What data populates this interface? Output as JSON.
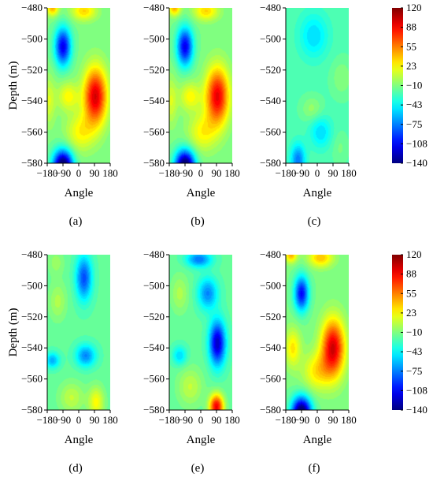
{
  "chart_data": {
    "type": "heatmap",
    "colorbar": {
      "ticks": [
        "120",
        "88",
        "55",
        "23",
        "−10",
        "−43",
        "−75",
        "−108",
        "−140"
      ],
      "range": [
        -140,
        120
      ],
      "colormap": "jet"
    },
    "axes": {
      "xlabel": "Angle",
      "ylabel": "Depth (m)",
      "xlim": [
        -180,
        180
      ],
      "ylim": [
        -580,
        -480
      ],
      "xticks": [
        "−180",
        "−90",
        "0",
        "90",
        "180"
      ],
      "yticks": [
        "−480",
        "−500",
        "−520",
        "−540",
        "−560",
        "−580"
      ]
    },
    "panels": [
      {
        "label": "(a)",
        "base": -12,
        "blobs": [
          {
            "x": -90,
            "y": -505,
            "a": -100,
            "sx": 45,
            "sy": 12
          },
          {
            "x": -90,
            "y": -582,
            "a": -150,
            "sx": 55,
            "sy": 10
          },
          {
            "x": 95,
            "y": -537,
            "a": 110,
            "sx": 65,
            "sy": 18
          },
          {
            "x": 10,
            "y": -560,
            "a": 35,
            "sx": 80,
            "sy": 12
          },
          {
            "x": -60,
            "y": -537,
            "a": 35,
            "sx": 60,
            "sy": 9
          },
          {
            "x": 30,
            "y": -482,
            "a": 45,
            "sx": 70,
            "sy": 6
          },
          {
            "x": -150,
            "y": -480,
            "a": 55,
            "sx": 35,
            "sy": 5
          },
          {
            "x": -170,
            "y": -540,
            "a": 25,
            "sx": 35,
            "sy": 15
          }
        ]
      },
      {
        "label": "(b)",
        "base": -12,
        "blobs": [
          {
            "x": -90,
            "y": -505,
            "a": -100,
            "sx": 45,
            "sy": 12
          },
          {
            "x": -90,
            "y": -582,
            "a": -150,
            "sx": 55,
            "sy": 10
          },
          {
            "x": 95,
            "y": -537,
            "a": 105,
            "sx": 65,
            "sy": 18
          },
          {
            "x": 10,
            "y": -560,
            "a": 35,
            "sx": 80,
            "sy": 12
          },
          {
            "x": -60,
            "y": -537,
            "a": 35,
            "sx": 60,
            "sy": 9
          },
          {
            "x": 30,
            "y": -482,
            "a": 45,
            "sx": 70,
            "sy": 6
          },
          {
            "x": -150,
            "y": -480,
            "a": 55,
            "sx": 35,
            "sy": 5
          },
          {
            "x": -170,
            "y": -540,
            "a": 25,
            "sx": 35,
            "sy": 15
          }
        ]
      },
      {
        "label": "(c)",
        "base": -22,
        "blobs": [
          {
            "x": -20,
            "y": -498,
            "a": -30,
            "sx": 80,
            "sy": 14
          },
          {
            "x": -110,
            "y": -578,
            "a": -55,
            "sx": 40,
            "sy": 10
          },
          {
            "x": 20,
            "y": -560,
            "a": -30,
            "sx": 60,
            "sy": 10
          },
          {
            "x": 140,
            "y": -525,
            "a": 15,
            "sx": 60,
            "sy": 12
          },
          {
            "x": -30,
            "y": -545,
            "a": 18,
            "sx": 60,
            "sy": 8
          },
          {
            "x": 130,
            "y": -570,
            "a": 10,
            "sx": 45,
            "sy": 10
          }
        ]
      },
      {
        "label": "(d)",
        "base": -18,
        "blobs": [
          {
            "x": 30,
            "y": -495,
            "a": -70,
            "sx": 45,
            "sy": 14
          },
          {
            "x": 40,
            "y": -545,
            "a": -55,
            "sx": 55,
            "sy": 7
          },
          {
            "x": -150,
            "y": -548,
            "a": -45,
            "sx": 40,
            "sy": 5
          },
          {
            "x": 100,
            "y": -575,
            "a": 40,
            "sx": 45,
            "sy": 10
          },
          {
            "x": -120,
            "y": -510,
            "a": 20,
            "sx": 50,
            "sy": 12
          },
          {
            "x": -40,
            "y": -572,
            "a": 25,
            "sx": 70,
            "sy": 10
          },
          {
            "x": -130,
            "y": -485,
            "a": 15,
            "sx": 45,
            "sy": 8
          }
        ]
      },
      {
        "label": "(e)",
        "base": -18,
        "blobs": [
          {
            "x": 95,
            "y": -537,
            "a": -105,
            "sx": 45,
            "sy": 14
          },
          {
            "x": 40,
            "y": -505,
            "a": -55,
            "sx": 55,
            "sy": 10
          },
          {
            "x": -10,
            "y": -483,
            "a": -60,
            "sx": 70,
            "sy": 5
          },
          {
            "x": 90,
            "y": -578,
            "a": 110,
            "sx": 40,
            "sy": 8
          },
          {
            "x": -120,
            "y": -505,
            "a": 20,
            "sx": 50,
            "sy": 12
          },
          {
            "x": -60,
            "y": -565,
            "a": 25,
            "sx": 70,
            "sy": 12
          },
          {
            "x": -120,
            "y": -545,
            "a": -35,
            "sx": 40,
            "sy": 6
          }
        ]
      },
      {
        "label": "(f)",
        "base": -12,
        "blobs": [
          {
            "x": -90,
            "y": -505,
            "a": -95,
            "sx": 40,
            "sy": 11
          },
          {
            "x": -90,
            "y": -582,
            "a": -150,
            "sx": 55,
            "sy": 10
          },
          {
            "x": 90,
            "y": -540,
            "a": 110,
            "sx": 65,
            "sy": 18
          },
          {
            "x": 0,
            "y": -555,
            "a": 40,
            "sx": 80,
            "sy": 12
          },
          {
            "x": -140,
            "y": -540,
            "a": 40,
            "sx": 45,
            "sy": 12
          },
          {
            "x": 20,
            "y": -482,
            "a": 50,
            "sx": 70,
            "sy": 6
          },
          {
            "x": -150,
            "y": -480,
            "a": 55,
            "sx": 35,
            "sy": 5
          }
        ]
      }
    ]
  }
}
